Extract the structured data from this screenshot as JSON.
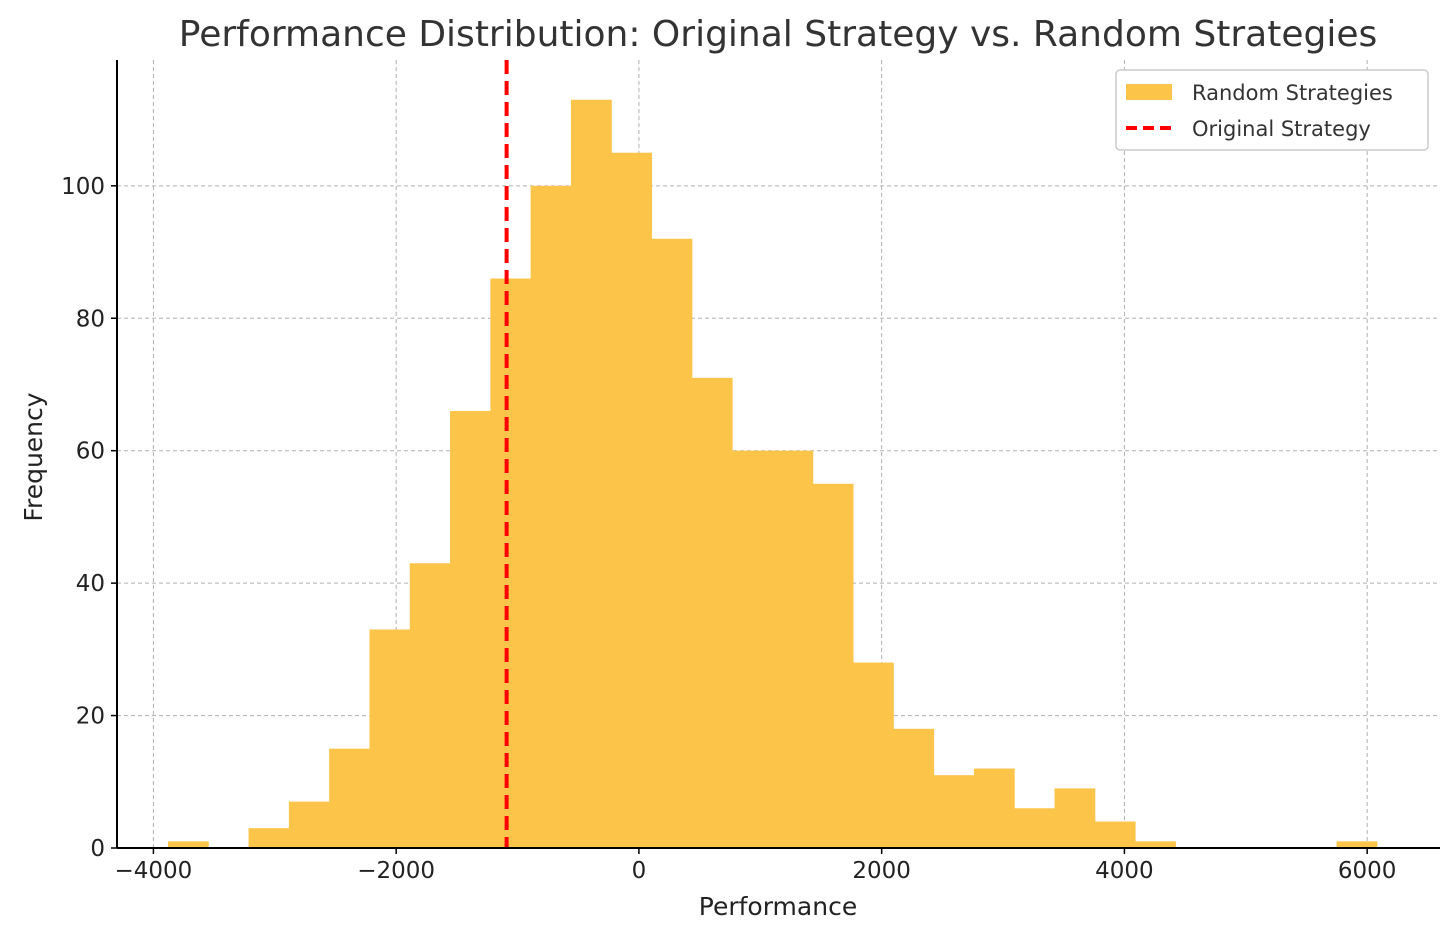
{
  "chart_data": {
    "type": "bar",
    "title": "Performance Distribution: Original Strategy vs. Random Strategies",
    "xlabel": "Performance",
    "ylabel": "Frequency",
    "xlim": [
      -4300,
      6600
    ],
    "ylim": [
      0,
      119
    ],
    "xticks": [
      -4000,
      -2000,
      0,
      2000,
      4000,
      6000
    ],
    "xtick_labels": [
      "−4000",
      "−2000",
      "0",
      "2000",
      "4000",
      "6000"
    ],
    "yticks": [
      0,
      20,
      40,
      60,
      80,
      100
    ],
    "ytick_labels": [
      "0",
      "20",
      "40",
      "60",
      "80",
      "100"
    ],
    "grid": true,
    "legend_position": "top-right",
    "series": [
      {
        "name": "Random Strategies",
        "kind": "histogram",
        "color": "#FDC44A",
        "bin_edges": [
          -3880,
          -3548,
          -3216,
          -2884,
          -2552,
          -2220,
          -1888,
          -1556,
          -1224,
          -892,
          -560,
          -228,
          104,
          436,
          768,
          1100,
          1432,
          1764,
          2096,
          2428,
          2760,
          3092,
          3424,
          3756,
          4088,
          4420,
          4752,
          5084,
          5416,
          5748,
          6080
        ],
        "counts": [
          1,
          0,
          3,
          7,
          15,
          33,
          43,
          66,
          86,
          100,
          113,
          105,
          92,
          71,
          60,
          60,
          55,
          28,
          18,
          11,
          12,
          6,
          9,
          4,
          1,
          0,
          0,
          0,
          0,
          1
        ]
      },
      {
        "name": "Original Strategy",
        "kind": "vline",
        "color": "#FF0000",
        "x": -1090
      }
    ]
  }
}
